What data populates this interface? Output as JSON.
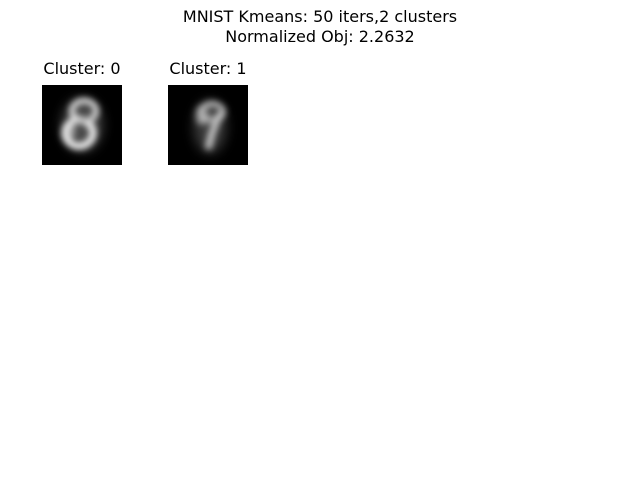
{
  "figure": {
    "title_line1": "MNIST Kmeans: 50 iters,2 clusters",
    "title_line2": "Normalized Obj: 2.2632"
  },
  "chart_data": {
    "type": "image-grid",
    "title": "MNIST Kmeans: 50 iters,2 clusters\nNormalized Obj: 2.2632",
    "colormap": "gray",
    "background_color": "#000000",
    "foreground_color": "#ffffff",
    "images": [
      {
        "label": "Cluster: 0",
        "depicts": "blurred digit resembling 0 / 8"
      },
      {
        "label": "Cluster: 1",
        "depicts": "blurred digit resembling 9 / 7"
      }
    ]
  }
}
